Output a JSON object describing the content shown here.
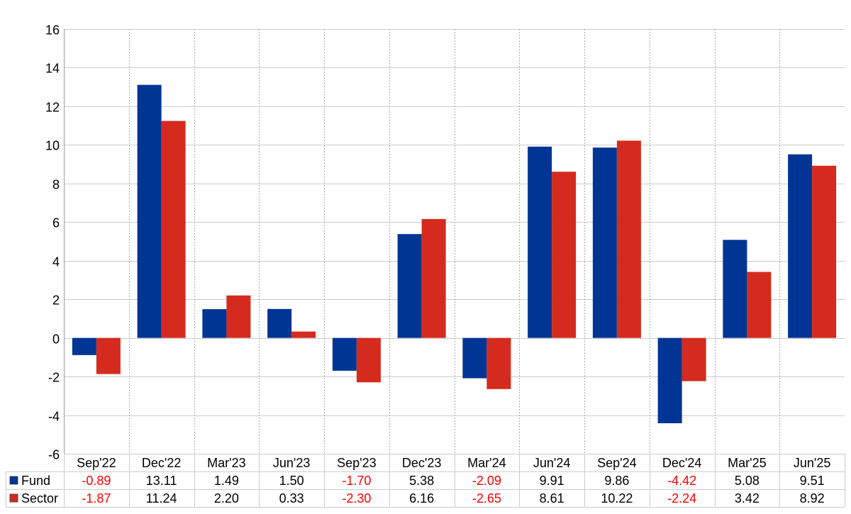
{
  "chart_data": {
    "type": "bar",
    "categories": [
      "Sep'22",
      "Dec'22",
      "Mar'23",
      "Jun'23",
      "Sep'23",
      "Dec'23",
      "Mar'24",
      "Jun'24",
      "Sep'24",
      "Dec'24",
      "Mar'25",
      "Jun'25"
    ],
    "series": [
      {
        "name": "Fund",
        "color": "#003594",
        "values": [
          -0.89,
          13.11,
          1.49,
          1.5,
          -1.7,
          5.38,
          -2.09,
          9.91,
          9.86,
          -4.42,
          5.08,
          9.51
        ],
        "labels": [
          "-0.89",
          "13.11",
          "1.49",
          "1.50",
          "-1.70",
          "5.38",
          "-2.09",
          "9.91",
          "9.86",
          "-4.42",
          "5.08",
          "9.51"
        ]
      },
      {
        "name": "Sector",
        "color": "#d52b1e",
        "values": [
          -1.87,
          11.24,
          2.2,
          0.33,
          -2.3,
          6.16,
          -2.65,
          8.61,
          10.22,
          -2.24,
          3.42,
          8.92
        ],
        "labels": [
          "-1.87",
          "11.24",
          "2.20",
          "0.33",
          "-2.30",
          "6.16",
          "-2.65",
          "8.61",
          "10.22",
          "-2.24",
          "3.42",
          "8.92"
        ]
      }
    ],
    "ylim": [
      -6,
      16
    ],
    "yticks": [
      -6,
      -4,
      -2,
      0,
      2,
      4,
      6,
      8,
      10,
      12,
      14,
      16
    ],
    "grid": true,
    "legend": "data-table-left",
    "negative_value_color": "#ff0000"
  }
}
